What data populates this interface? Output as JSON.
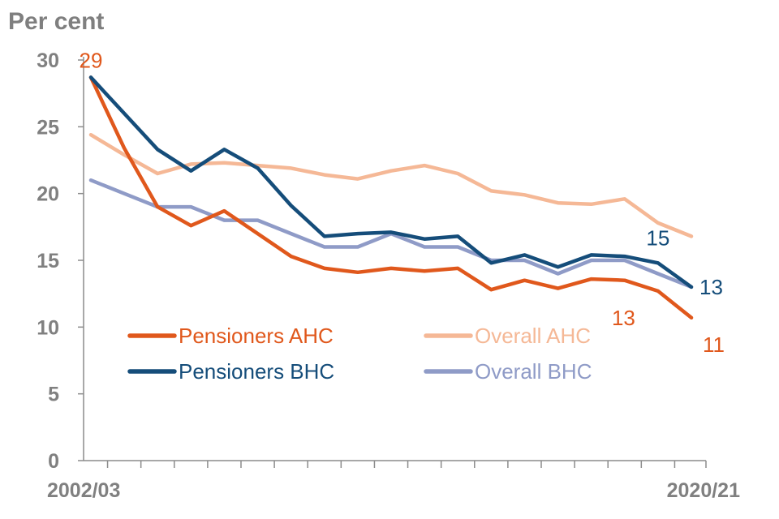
{
  "chart_data": {
    "type": "line",
    "title": "",
    "ylabel": "Per cent",
    "xlabel": "",
    "ylim": [
      0,
      30
    ],
    "yticks": [
      0,
      5,
      10,
      15,
      20,
      25,
      30
    ],
    "grid": false,
    "legend_position": "bottom-left",
    "x_count": 19,
    "x_tick_labels": [
      {
        "index": 0,
        "label": "2002/03"
      },
      {
        "index": 18,
        "label": "2020/21"
      }
    ],
    "series": [
      {
        "name": "Overall AHC",
        "color": "#f5b896",
        "values": [
          24.4,
          22.9,
          21.5,
          22.2,
          22.3,
          22.1,
          21.9,
          21.4,
          21.1,
          21.7,
          22.1,
          21.5,
          20.2,
          19.9,
          19.3,
          19.2,
          19.6,
          17.8,
          16.8
        ]
      },
      {
        "name": "Overall BHC",
        "color": "#8f9bc7",
        "values": [
          21.0,
          20.0,
          19.0,
          19.0,
          18.0,
          18.0,
          17.0,
          16.0,
          16.0,
          17.0,
          16.0,
          16.0,
          15.0,
          15.0,
          14.0,
          15.0,
          15.0,
          14.0,
          13.0
        ]
      },
      {
        "name": "Pensioners AHC",
        "color": "#e0581c",
        "values": [
          28.7,
          23.4,
          19.0,
          17.6,
          18.7,
          17.0,
          15.3,
          14.4,
          14.1,
          14.4,
          14.2,
          14.4,
          12.8,
          13.5,
          12.9,
          13.6,
          13.5,
          12.7,
          10.7
        ]
      },
      {
        "name": "Pensioners BHC",
        "color": "#154d7a",
        "values": [
          28.7,
          26.0,
          23.3,
          21.7,
          23.3,
          21.9,
          19.1,
          16.8,
          17.0,
          17.1,
          16.6,
          16.8,
          14.8,
          15.4,
          14.5,
          15.4,
          15.3,
          14.8,
          13.0
        ]
      }
    ],
    "legend_rows": [
      [
        "Pensioners AHC",
        "Overall AHC"
      ],
      [
        "Pensioners BHC",
        "Overall BHC"
      ]
    ],
    "annotations": [
      {
        "text": "29",
        "series": "Pensioners AHC",
        "index": 0,
        "color": "#e0581c"
      },
      {
        "text": "15",
        "series": "Pensioners BHC",
        "index": 17,
        "color": "#154d7a"
      },
      {
        "text": "13",
        "series": "Pensioners BHC",
        "index": 18,
        "color": "#154d7a"
      },
      {
        "text": "13",
        "series": "Pensioners AHC",
        "index": 17,
        "color": "#e0581c"
      },
      {
        "text": "11",
        "series": "Pensioners AHC",
        "index": 18,
        "color": "#e0581c"
      }
    ]
  }
}
